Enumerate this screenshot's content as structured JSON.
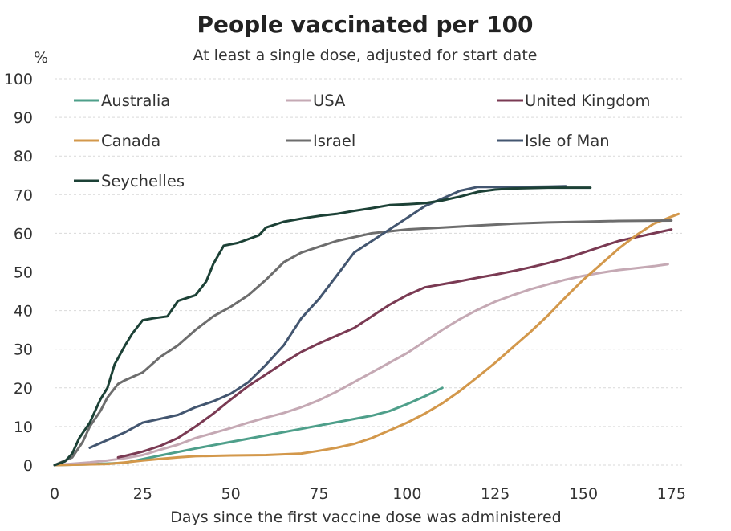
{
  "chart_data": {
    "type": "line",
    "title": "People vaccinated per 100",
    "subtitle": "At least a single dose, adjusted for start date",
    "y_unit": "%",
    "xlabel": "Days since the first vaccine dose was administered",
    "ylabel": "",
    "xlim": [
      0,
      178
    ],
    "ylim": [
      0,
      100
    ],
    "xticks": [
      0,
      25,
      50,
      75,
      100,
      125,
      150,
      175
    ],
    "yticks": [
      0,
      10,
      20,
      30,
      40,
      50,
      60,
      70,
      80,
      90,
      100
    ],
    "grid": true,
    "legend": "top, three columns",
    "series": [
      {
        "name": "Australia",
        "color": "#4e9f8a",
        "points": [
          [
            0,
            0
          ],
          [
            10,
            0.2
          ],
          [
            20,
            0.6
          ],
          [
            30,
            2.5
          ],
          [
            40,
            4.3
          ],
          [
            50,
            6
          ],
          [
            60,
            7.7
          ],
          [
            70,
            9.4
          ],
          [
            80,
            11.1
          ],
          [
            90,
            12.8
          ],
          [
            95,
            14
          ],
          [
            100,
            15.8
          ],
          [
            105,
            17.8
          ],
          [
            110,
            20
          ]
        ]
      },
      {
        "name": "USA",
        "color": "#c5a9b4",
        "points": [
          [
            0,
            0
          ],
          [
            10,
            0.7
          ],
          [
            15,
            1.2
          ],
          [
            20,
            1.8
          ],
          [
            25,
            2.6
          ],
          [
            30,
            4
          ],
          [
            35,
            5.3
          ],
          [
            40,
            7
          ],
          [
            45,
            8.3
          ],
          [
            50,
            9.6
          ],
          [
            55,
            11
          ],
          [
            60,
            12.3
          ],
          [
            65,
            13.5
          ],
          [
            70,
            15
          ],
          [
            75,
            16.8
          ],
          [
            80,
            19
          ],
          [
            85,
            21.5
          ],
          [
            90,
            24
          ],
          [
            95,
            26.5
          ],
          [
            100,
            29
          ],
          [
            105,
            32
          ],
          [
            110,
            35
          ],
          [
            115,
            37.8
          ],
          [
            120,
            40.2
          ],
          [
            125,
            42.3
          ],
          [
            130,
            44
          ],
          [
            135,
            45.5
          ],
          [
            140,
            46.8
          ],
          [
            145,
            48
          ],
          [
            150,
            49
          ],
          [
            155,
            49.8
          ],
          [
            160,
            50.5
          ],
          [
            165,
            51
          ],
          [
            170,
            51.5
          ],
          [
            174,
            52
          ]
        ]
      },
      {
        "name": "United Kingdom",
        "color": "#7a3a53",
        "points": [
          [
            18,
            2
          ],
          [
            20,
            2.4
          ],
          [
            25,
            3.5
          ],
          [
            30,
            5
          ],
          [
            35,
            7
          ],
          [
            40,
            10
          ],
          [
            45,
            13.3
          ],
          [
            50,
            17
          ],
          [
            55,
            20.5
          ],
          [
            60,
            23.5
          ],
          [
            65,
            26.5
          ],
          [
            70,
            29.3
          ],
          [
            75,
            31.5
          ],
          [
            80,
            33.5
          ],
          [
            85,
            35.5
          ],
          [
            90,
            38.5
          ],
          [
            95,
            41.5
          ],
          [
            100,
            44
          ],
          [
            105,
            46
          ],
          [
            110,
            46.8
          ],
          [
            115,
            47.6
          ],
          [
            120,
            48.5
          ],
          [
            125,
            49.3
          ],
          [
            130,
            50.2
          ],
          [
            135,
            51.2
          ],
          [
            140,
            52.3
          ],
          [
            145,
            53.5
          ],
          [
            150,
            55
          ],
          [
            155,
            56.5
          ],
          [
            160,
            58
          ],
          [
            165,
            59
          ],
          [
            170,
            60
          ],
          [
            175,
            61
          ]
        ]
      },
      {
        "name": "Canada",
        "color": "#d3984b",
        "points": [
          [
            0,
            0
          ],
          [
            15,
            0.3
          ],
          [
            20,
            0.7
          ],
          [
            25,
            1.2
          ],
          [
            30,
            1.6
          ],
          [
            35,
            2
          ],
          [
            40,
            2.3
          ],
          [
            50,
            2.5
          ],
          [
            60,
            2.6
          ],
          [
            70,
            3
          ],
          [
            75,
            3.7
          ],
          [
            80,
            4.5
          ],
          [
            85,
            5.5
          ],
          [
            90,
            7
          ],
          [
            95,
            9
          ],
          [
            100,
            11
          ],
          [
            105,
            13.3
          ],
          [
            110,
            16
          ],
          [
            115,
            19.2
          ],
          [
            120,
            22.8
          ],
          [
            125,
            26.5
          ],
          [
            130,
            30.5
          ],
          [
            135,
            34.5
          ],
          [
            140,
            38.8
          ],
          [
            145,
            43.5
          ],
          [
            150,
            48
          ],
          [
            155,
            52
          ],
          [
            160,
            56
          ],
          [
            165,
            59.5
          ],
          [
            170,
            62.5
          ],
          [
            175,
            64.3
          ],
          [
            177,
            65
          ]
        ]
      },
      {
        "name": "Israel",
        "color": "#6d6d6d",
        "points": [
          [
            0,
            0
          ],
          [
            5,
            2
          ],
          [
            8,
            6
          ],
          [
            10,
            10
          ],
          [
            13,
            14
          ],
          [
            15,
            17.5
          ],
          [
            18,
            21
          ],
          [
            20,
            22
          ],
          [
            25,
            24
          ],
          [
            30,
            28
          ],
          [
            35,
            31
          ],
          [
            40,
            35
          ],
          [
            45,
            38.5
          ],
          [
            50,
            41
          ],
          [
            55,
            44
          ],
          [
            60,
            48
          ],
          [
            65,
            52.5
          ],
          [
            70,
            55
          ],
          [
            75,
            56.5
          ],
          [
            80,
            58
          ],
          [
            85,
            59
          ],
          [
            90,
            60
          ],
          [
            95,
            60.5
          ],
          [
            100,
            61
          ],
          [
            110,
            61.5
          ],
          [
            120,
            62
          ],
          [
            130,
            62.5
          ],
          [
            140,
            62.8
          ],
          [
            150,
            63
          ],
          [
            160,
            63.2
          ],
          [
            175,
            63.3
          ]
        ]
      },
      {
        "name": "Isle of Man",
        "color": "#435670",
        "points": [
          [
            10,
            4.5
          ],
          [
            15,
            6.5
          ],
          [
            20,
            8.5
          ],
          [
            25,
            11
          ],
          [
            30,
            12
          ],
          [
            35,
            13
          ],
          [
            40,
            15
          ],
          [
            45,
            16.5
          ],
          [
            50,
            18.5
          ],
          [
            55,
            21.5
          ],
          [
            60,
            26
          ],
          [
            65,
            31
          ],
          [
            70,
            38
          ],
          [
            75,
            43
          ],
          [
            80,
            49
          ],
          [
            85,
            55
          ],
          [
            90,
            58
          ],
          [
            95,
            61
          ],
          [
            100,
            64
          ],
          [
            105,
            67
          ],
          [
            110,
            69
          ],
          [
            115,
            71
          ],
          [
            120,
            72
          ],
          [
            130,
            72
          ],
          [
            140,
            72.1
          ],
          [
            145,
            72.2
          ]
        ]
      },
      {
        "name": "Seychelles",
        "color": "#1c4136",
        "points": [
          [
            0,
            0
          ],
          [
            3,
            1
          ],
          [
            5,
            3
          ],
          [
            7,
            7
          ],
          [
            10,
            11
          ],
          [
            13,
            17
          ],
          [
            15,
            20
          ],
          [
            17,
            26
          ],
          [
            20,
            31
          ],
          [
            22,
            34
          ],
          [
            25,
            37.5
          ],
          [
            28,
            38
          ],
          [
            32,
            38.5
          ],
          [
            35,
            42.5
          ],
          [
            40,
            44
          ],
          [
            43,
            47.5
          ],
          [
            45,
            52
          ],
          [
            48,
            56.8
          ],
          [
            52,
            57.5
          ],
          [
            55,
            58.5
          ],
          [
            58,
            59.5
          ],
          [
            60,
            61.5
          ],
          [
            65,
            63
          ],
          [
            70,
            63.8
          ],
          [
            75,
            64.5
          ],
          [
            80,
            65
          ],
          [
            85,
            65.8
          ],
          [
            90,
            66.5
          ],
          [
            95,
            67.3
          ],
          [
            100,
            67.5
          ],
          [
            105,
            67.8
          ],
          [
            110,
            68.5
          ],
          [
            115,
            69.5
          ],
          [
            120,
            70.7
          ],
          [
            125,
            71.3
          ],
          [
            130,
            71.6
          ],
          [
            140,
            71.8
          ],
          [
            152,
            71.8
          ]
        ]
      }
    ]
  }
}
